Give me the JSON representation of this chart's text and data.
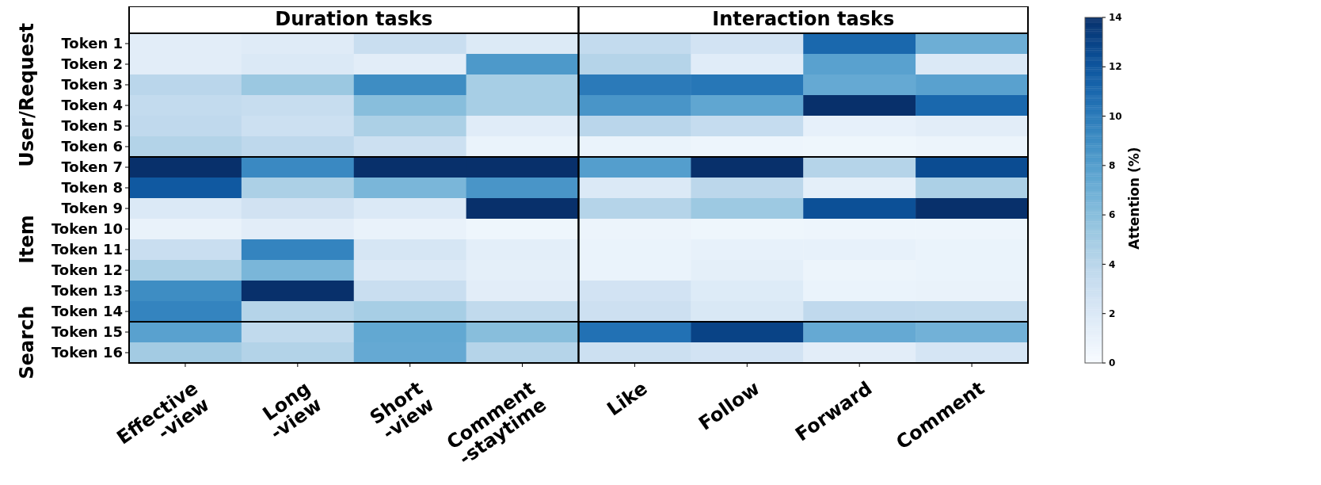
{
  "chart_data": {
    "type": "heatmap",
    "clabel": "Attention (%)",
    "categories": [
      "Effective\n-view",
      "Long\n-view",
      "Short\n-view",
      "Comment\n-staytime",
      "Like",
      "Follow",
      "Forward",
      "Comment"
    ],
    "y_categories": [
      "Token 1",
      "Token 2",
      "Token 3",
      "Token 4",
      "Token 5",
      "Token 6",
      "Token 7",
      "Token 8",
      "Token 9",
      "Token 10",
      "Token 11",
      "Token 12",
      "Token 13",
      "Token 14",
      "Token 15",
      "Token 16"
    ],
    "cells": [
      [
        1.5,
        1.7,
        3.2,
        1.9,
        3.5,
        2.6,
        11,
        7
      ],
      [
        1.5,
        2,
        1.5,
        8.3,
        4.2,
        1.6,
        7.8,
        2
      ],
      [
        4,
        5.3,
        9,
        4.8,
        10,
        10.2,
        7.3,
        7.8
      ],
      [
        3.5,
        3.3,
        6,
        4.8,
        8.5,
        7.5,
        14,
        11
      ],
      [
        3.7,
        3,
        4.6,
        1.6,
        4,
        3.4,
        1.2,
        1.5
      ],
      [
        4.3,
        3.8,
        3,
        0.9,
        0.9,
        0.7,
        0.6,
        0.8
      ],
      [
        14,
        9.2,
        14,
        14,
        8,
        14,
        4.2,
        12.5
      ],
      [
        11.8,
        4.6,
        6.5,
        8.5,
        2,
        3.9,
        1.3,
        4.6
      ],
      [
        2,
        2.7,
        2,
        14,
        4.2,
        5.2,
        12.3,
        14
      ],
      [
        1,
        1.5,
        1,
        0.6,
        0.8,
        0.6,
        0.7,
        0.7
      ],
      [
        3.2,
        9.5,
        2.3,
        1.4,
        0.9,
        1.1,
        1.1,
        0.9
      ],
      [
        4.6,
        6.5,
        2,
        1.3,
        0.9,
        1.3,
        0.8,
        0.9
      ],
      [
        9,
        14,
        3.2,
        1.5,
        2.6,
        1.8,
        0.9,
        1
      ],
      [
        9.5,
        4.2,
        4.8,
        3.6,
        2.9,
        2.1,
        3.7,
        3.6
      ],
      [
        7.8,
        3.6,
        7.4,
        6,
        10.5,
        13,
        7.3,
        6.8
      ],
      [
        5,
        4.3,
        7.3,
        4.2,
        3,
        2.6,
        1.5,
        2.4
      ]
    ],
    "clim": [
      0,
      14
    ],
    "cticks": [
      0,
      2,
      4,
      6,
      8,
      10,
      12,
      14
    ],
    "annotations": [
      "Duration tasks",
      "Interaction tasks",
      "User/Request",
      "Item",
      "Search"
    ]
  }
}
